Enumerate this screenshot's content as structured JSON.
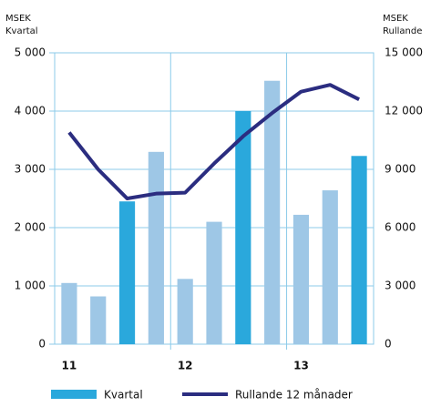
{
  "chart_data": {
    "type": "bar_line",
    "ylabel": [
      "MSEK",
      "Kvartal"
    ],
    "y2label": [
      "MSEK",
      "Rullande"
    ],
    "categories": [
      "11",
      null,
      null,
      null,
      "12",
      null,
      null,
      null,
      "13",
      null,
      null
    ],
    "series": [
      {
        "name": "Kvartal",
        "type": "bar",
        "color": "#2aa8dc",
        "colors": [
          "#9ec7e6",
          "#9ec7e6",
          "#2aa8dc",
          "#9ec7e6",
          "#9ec7e6",
          "#9ec7e6",
          "#2aa8dc",
          "#9ec7e6",
          "#9ec7e6",
          "#9ec7e6",
          "#2aa8dc"
        ],
        "values": [
          1050,
          820,
          2450,
          3300,
          1120,
          2100,
          4000,
          4520,
          2220,
          2640,
          3230
        ]
      },
      {
        "name": "Rullande 12 månader",
        "type": "line",
        "axis": "y2",
        "color": "#2b2d80",
        "values": [
          10900,
          9000,
          7500,
          7750,
          7800,
          9300,
          10700,
          11900,
          13000,
          13350,
          12600
        ]
      }
    ],
    "ylim": [
      0,
      5000
    ],
    "yticks": [
      0,
      {
        "value": 1000,
        "label": "1 000"
      },
      {
        "value": 2000,
        "label": "2 000"
      },
      {
        "value": 3000,
        "label": "3 000"
      },
      {
        "value": 4000,
        "label": "4 000"
      },
      {
        "value": 5000,
        "label": "5 000"
      }
    ],
    "y2lim": [
      0,
      15000
    ],
    "y2ticks": [
      0,
      {
        "value": 3000,
        "label": "3 000"
      },
      {
        "value": 6000,
        "label": "6 000"
      },
      {
        "value": 9000,
        "label": "9 000"
      },
      {
        "value": 12000,
        "label": "12 000"
      },
      {
        "value": 15000,
        "label": "15 000"
      }
    ],
    "grid": true
  }
}
